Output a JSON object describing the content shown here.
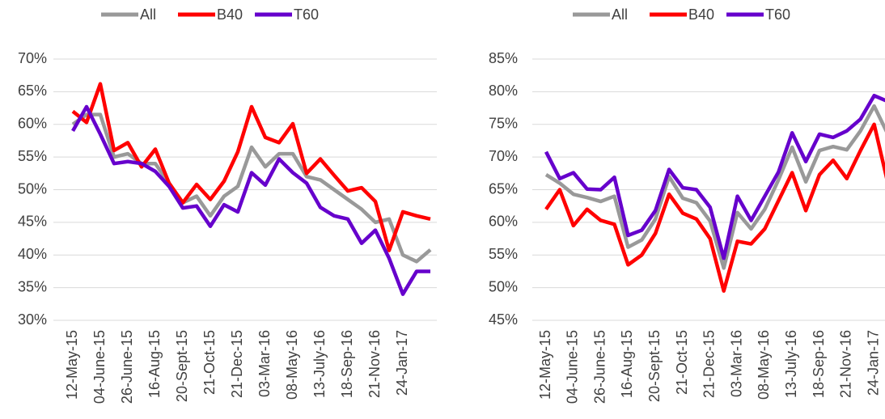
{
  "chart_data": [
    {
      "type": "line",
      "categories": [
        "12-May-15",
        null,
        "04-June-15",
        null,
        "26-June-15",
        null,
        "16-Aug-15",
        null,
        "20-Sept-15",
        null,
        "21-Oct-15",
        null,
        "21-Dec-15",
        null,
        "03-Mar-16",
        null,
        "08-May-16",
        null,
        "13-July-16",
        null,
        "18-Sep-16",
        null,
        "21-Nov-16",
        null,
        "24-Jan-17",
        null,
        null
      ],
      "series": [
        {
          "name": "All",
          "color": "#999999",
          "values": [
            60,
            61.5,
            61.5,
            55,
            55.5,
            54,
            54,
            51,
            48,
            49,
            46,
            49,
            50.5,
            56.5,
            53.5,
            55.5,
            55.5,
            52,
            51.5,
            50,
            48.5,
            47,
            45,
            45.5,
            40,
            39,
            40.8
          ]
        },
        {
          "name": "B40",
          "color": "#ff0000",
          "values": [
            62,
            60.3,
            66.2,
            56,
            57.2,
            53.5,
            56.2,
            51,
            48,
            50.8,
            48.5,
            51.3,
            55.8,
            62.7,
            58,
            57.2,
            60.1,
            52.5,
            54.7,
            52.2,
            49.8,
            50.3,
            48.2,
            40.7,
            46.6,
            46,
            45.5
          ]
        },
        {
          "name": "T60",
          "color": "#6600cc",
          "values": [
            59,
            62.7,
            58.5,
            54,
            54.3,
            54,
            52.8,
            50.5,
            47.2,
            47.5,
            44.4,
            47.7,
            46.6,
            52.6,
            50.7,
            54.7,
            52.6,
            51,
            47.3,
            46,
            45.5,
            41.8,
            43.8,
            39.5,
            34,
            37.5,
            37.5
          ]
        }
      ],
      "ylim": [
        30,
        70
      ],
      "yticks": [
        {
          "value": 30,
          "label": "30%"
        },
        {
          "value": 35,
          "label": "35%"
        },
        {
          "value": 40,
          "label": "40%"
        },
        {
          "value": 45,
          "label": "45%"
        },
        {
          "value": 50,
          "label": "50%"
        },
        {
          "value": 55,
          "label": "55%"
        },
        {
          "value": 60,
          "label": "60%"
        },
        {
          "value": 65,
          "label": "65%"
        },
        {
          "value": 70,
          "label": "70%"
        }
      ],
      "grid": true,
      "legend": "top"
    },
    {
      "type": "line",
      "categories": [
        "12-May-15",
        null,
        "04-June-15",
        null,
        "26-June-15",
        null,
        "16-Aug-15",
        null,
        "20-Sept-15",
        null,
        "21-Oct-15",
        null,
        "21-Dec-15",
        null,
        "03-Mar-16",
        null,
        "08-May-16",
        null,
        "13-July-16",
        null,
        "18-Sep-16",
        null,
        "21-Nov-16",
        null,
        "24-Jan-17",
        null
      ],
      "series": [
        {
          "name": "All",
          "color": "#999999",
          "values": [
            67.3,
            66,
            64.3,
            63.8,
            63.2,
            64,
            56.2,
            57.3,
            60.5,
            67,
            63.7,
            63,
            60.2,
            53,
            61.5,
            59,
            62,
            66.5,
            71.5,
            66.2,
            71,
            71.6,
            71.1,
            74,
            77.8,
            73.5
          ]
        },
        {
          "name": "B40",
          "color": "#ff0000",
          "values": [
            62,
            65,
            59.5,
            62,
            60.3,
            59.7,
            53.5,
            55,
            58.3,
            64.3,
            61.4,
            60.5,
            57.5,
            49.5,
            57.1,
            56.7,
            59,
            63.3,
            67.6,
            61.8,
            67.3,
            69.5,
            66.7,
            71,
            75,
            66
          ]
        },
        {
          "name": "T60",
          "color": "#6600cc",
          "values": [
            70.8,
            66.7,
            67.6,
            65.1,
            65,
            66.9,
            58,
            58.8,
            61.8,
            68.1,
            65.3,
            65,
            62.3,
            54.5,
            64,
            60.3,
            64,
            67.7,
            73.7,
            69.3,
            73.5,
            73,
            74,
            75.8,
            79.4,
            78.5
          ]
        }
      ],
      "ylim": [
        45,
        85
      ],
      "yticks": [
        {
          "value": 45,
          "label": "45%"
        },
        {
          "value": 50,
          "label": "50%"
        },
        {
          "value": 55,
          "label": "55%"
        },
        {
          "value": 60,
          "label": "60%"
        },
        {
          "value": 65,
          "label": "65%"
        },
        {
          "value": 70,
          "label": "70%"
        },
        {
          "value": 75,
          "label": "75%"
        },
        {
          "value": 80,
          "label": "80%"
        },
        {
          "value": 85,
          "label": "85%"
        }
      ],
      "grid": true,
      "legend": "top"
    }
  ]
}
